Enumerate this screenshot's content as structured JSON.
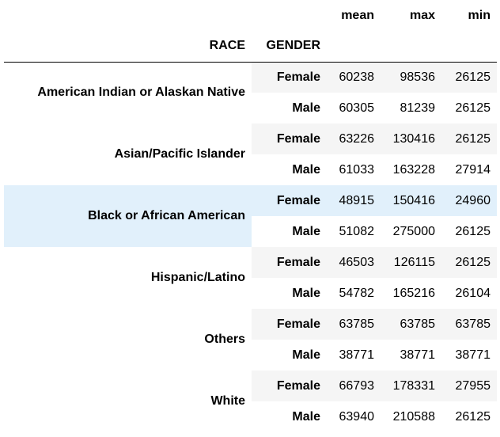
{
  "table": {
    "columns": [
      "mean",
      "max",
      "min"
    ],
    "index_names": [
      "RACE",
      "GENDER"
    ],
    "rows": [
      {
        "race": "American Indian or Alaskan Native",
        "groups": [
          {
            "gender": "Female",
            "values": [
              60238,
              98536,
              26125
            ]
          },
          {
            "gender": "Male",
            "values": [
              60305,
              81239,
              26125
            ]
          }
        ]
      },
      {
        "race": "Asian/Pacific Islander",
        "groups": [
          {
            "gender": "Female",
            "values": [
              63226,
              130416,
              26125
            ]
          },
          {
            "gender": "Male",
            "values": [
              61033,
              163228,
              27914
            ]
          }
        ]
      },
      {
        "race": "Black or African American",
        "groups": [
          {
            "gender": "Female",
            "values": [
              48915,
              150416,
              24960
            ]
          },
          {
            "gender": "Male",
            "values": [
              51082,
              275000,
              26125
            ]
          }
        ]
      },
      {
        "race": "Hispanic/Latino",
        "groups": [
          {
            "gender": "Female",
            "values": [
              46503,
              126115,
              26125
            ]
          },
          {
            "gender": "Male",
            "values": [
              54782,
              165216,
              26104
            ]
          }
        ]
      },
      {
        "race": "Others",
        "groups": [
          {
            "gender": "Female",
            "values": [
              63785,
              63785,
              63785
            ]
          },
          {
            "gender": "Male",
            "values": [
              38771,
              38771,
              38771
            ]
          }
        ]
      },
      {
        "race": "White",
        "groups": [
          {
            "gender": "Female",
            "values": [
              66793,
              178331,
              27955
            ]
          },
          {
            "gender": "Male",
            "values": [
              63940,
              210588,
              26125
            ]
          }
        ]
      }
    ]
  }
}
